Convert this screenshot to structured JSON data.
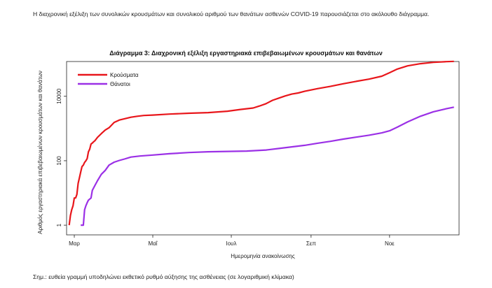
{
  "intro_text": "Η διαχρονική εξέλιξη των συνολικών κρουσμάτων και συνολικού αριθμού των θανάτων ασθενών COVID-19 παρουσιάζεται στο ακόλουθο διάγραμμα.",
  "note_text": "Σημ.: ευθεία γραμμή υποδηλώνει εκθετικό ρυθμό αύξησης της ασθένειας (σε λογαριθμική κλίμακα)",
  "chart_data": {
    "type": "line",
    "title": "Διάγραμμα 3: Διαχρονική εξέλιξη εργαστηριακά επιβεβαιωμένων κρουσμάτων και θανάτων",
    "xlabel": "Ημερομηνία ανακοίνωσης",
    "ylabel": "Αριθμός εργαστηριακά επιβεβαιωμένων κρουσμάτων και θανάτων",
    "y_scale": "log",
    "ylim": [
      0.5,
      120000
    ],
    "xlim": [
      55,
      360
    ],
    "x_ticks": [
      {
        "label": "Μαρ",
        "day": 61
      },
      {
        "label": "Μαΐ",
        "day": 122
      },
      {
        "label": "Ιουλ",
        "day": 183
      },
      {
        "label": "Σεπ",
        "day": 245
      },
      {
        "label": "Νοε",
        "day": 306
      }
    ],
    "y_ticks": [
      {
        "label": "1",
        "value": 1
      },
      {
        "label": "100",
        "value": 100
      },
      {
        "label": "10000",
        "value": 10000
      }
    ],
    "legend_position": "top-left",
    "series": [
      {
        "name": "Κρούσματα",
        "color": "#e8161b",
        "points": [
          [
            57,
            1
          ],
          [
            58,
            2
          ],
          [
            59,
            3
          ],
          [
            60,
            4
          ],
          [
            61,
            7
          ],
          [
            62,
            7
          ],
          [
            63,
            9
          ],
          [
            64,
            20
          ],
          [
            65,
            30
          ],
          [
            66,
            45
          ],
          [
            67,
            66
          ],
          [
            68,
            73
          ],
          [
            69,
            89
          ],
          [
            70,
            99
          ],
          [
            71,
            117
          ],
          [
            72,
            190
          ],
          [
            73,
            228
          ],
          [
            74,
            331
          ],
          [
            75,
            352
          ],
          [
            76,
            387
          ],
          [
            77,
            418
          ],
          [
            79,
            530
          ],
          [
            82,
            695
          ],
          [
            85,
            892
          ],
          [
            88,
            1061
          ],
          [
            92,
            1544
          ],
          [
            96,
            1832
          ],
          [
            100,
            2011
          ],
          [
            105,
            2235
          ],
          [
            110,
            2401
          ],
          [
            115,
            2534
          ],
          [
            122,
            2620
          ],
          [
            135,
            2810
          ],
          [
            150,
            2980
          ],
          [
            165,
            3120
          ],
          [
            180,
            3440
          ],
          [
            190,
            3900
          ],
          [
            200,
            4340
          ],
          [
            205,
            5000
          ],
          [
            210,
            5900
          ],
          [
            215,
            7500
          ],
          [
            220,
            8800
          ],
          [
            225,
            10300
          ],
          [
            230,
            11700
          ],
          [
            235,
            12700
          ],
          [
            240,
            14300
          ],
          [
            250,
            17300
          ],
          [
            260,
            20300
          ],
          [
            270,
            24500
          ],
          [
            280,
            29000
          ],
          [
            290,
            34000
          ],
          [
            300,
            42000
          ],
          [
            306,
            54000
          ],
          [
            312,
            70000
          ],
          [
            320,
            88000
          ],
          [
            330,
            103000
          ],
          [
            340,
            113000
          ],
          [
            350,
            119000
          ],
          [
            356,
            121000
          ]
        ]
      },
      {
        "name": "Θάνατοι",
        "color": "#9b30e6",
        "points": [
          [
            66,
            1
          ],
          [
            68,
            1
          ],
          [
            69,
            3
          ],
          [
            70,
            4
          ],
          [
            71,
            5
          ],
          [
            72,
            6
          ],
          [
            74,
            7
          ],
          [
            75,
            12
          ],
          [
            77,
            17
          ],
          [
            79,
            24
          ],
          [
            82,
            38
          ],
          [
            85,
            50
          ],
          [
            88,
            73
          ],
          [
            92,
            90
          ],
          [
            96,
            102
          ],
          [
            100,
            113
          ],
          [
            105,
            130
          ],
          [
            112,
            140
          ],
          [
            122,
            150
          ],
          [
            135,
            165
          ],
          [
            150,
            180
          ],
          [
            165,
            190
          ],
          [
            180,
            195
          ],
          [
            195,
            200
          ],
          [
            210,
            215
          ],
          [
            220,
            240
          ],
          [
            230,
            270
          ],
          [
            240,
            300
          ],
          [
            250,
            350
          ],
          [
            260,
            400
          ],
          [
            270,
            470
          ],
          [
            280,
            540
          ],
          [
            290,
            620
          ],
          [
            300,
            730
          ],
          [
            306,
            850
          ],
          [
            312,
            1100
          ],
          [
            320,
            1600
          ],
          [
            330,
            2400
          ],
          [
            340,
            3300
          ],
          [
            350,
            4100
          ],
          [
            356,
            4600
          ]
        ]
      }
    ]
  }
}
